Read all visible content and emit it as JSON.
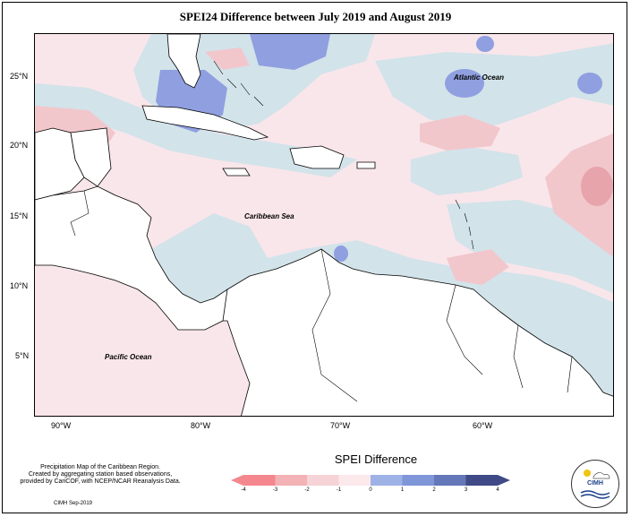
{
  "title": "SPEI24 Difference between July 2019 and August 2019",
  "lat_labels": [
    "25°N",
    "20°N",
    "15°N",
    "10°N",
    "5°N"
  ],
  "lon_labels": [
    "90°W",
    "80°W",
    "70°W",
    "60°W"
  ],
  "places": {
    "atlantic": "Atlantic Ocean",
    "caribbean": "Caribbean Sea",
    "pacific": "Pacific Ocean"
  },
  "legend": {
    "title": "SPEI Difference",
    "ticks": [
      "-4",
      "-3",
      "-2",
      "-1",
      "0",
      "1",
      "2",
      "3",
      "4"
    ],
    "colors": [
      "#f4878d",
      "#f3b2b6",
      "#f6d3d6",
      "#fbe9eb",
      "#cfe2ea",
      "#9fb2e6",
      "#7f96d9",
      "#6477b8",
      "#3f4a86"
    ]
  },
  "credits": {
    "line1": "Precipitation Map of the Caribbean Region.",
    "line2": "Created by aggregating station based observations,",
    "line3": "provided by CariCOF, with NCEP/NCAR Reanalysis Data.",
    "line4": "CIMH Sep-2019"
  },
  "logo": {
    "text": "CIMH"
  },
  "colors": {
    "land": "#ffffff",
    "pos_light": "#d2e3ea",
    "pos_mid": "#8f9fe0",
    "neg_light": "#f9e6ea",
    "neg_mid": "#f1c7cc"
  }
}
